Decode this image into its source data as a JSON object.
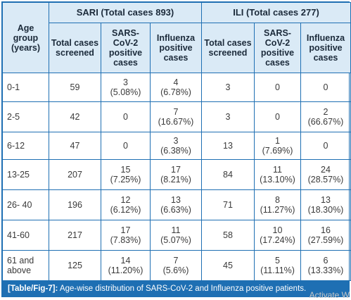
{
  "table": {
    "groups": {
      "sari": "SARI (Total cases 893)",
      "ili": "ILI (Total cases 277)"
    },
    "headers": {
      "age": "Age group (years)",
      "total": "Total cases screened",
      "sars": "SARS-CoV-2 positive cases",
      "flu": "Influenza positive cases"
    },
    "rows": [
      {
        "age": "0-1",
        "sari_total": "59",
        "sari_sars": [
          "3",
          "(5.08%)"
        ],
        "sari_flu": [
          "4",
          "(6.78%)"
        ],
        "ili_total": "3",
        "ili_sars": [
          "0",
          ""
        ],
        "ili_flu": [
          "0",
          ""
        ]
      },
      {
        "age": "2-5",
        "sari_total": "42",
        "sari_sars": [
          "0",
          ""
        ],
        "sari_flu": [
          "7",
          "(16.67%)"
        ],
        "ili_total": "3",
        "ili_sars": [
          "0",
          ""
        ],
        "ili_flu": [
          "2",
          "(66.67%)"
        ]
      },
      {
        "age": "6-12",
        "sari_total": "47",
        "sari_sars": [
          "0",
          ""
        ],
        "sari_flu": [
          "3",
          "(6.38%)"
        ],
        "ili_total": "13",
        "ili_sars": [
          "1",
          "(7.69%)"
        ],
        "ili_flu": [
          "0",
          ""
        ]
      },
      {
        "age": "13-25",
        "sari_total": "207",
        "sari_sars": [
          "15",
          "(7.25%)"
        ],
        "sari_flu": [
          "17",
          "(8.21%)"
        ],
        "ili_total": "84",
        "ili_sars": [
          "11",
          "(13.10%)"
        ],
        "ili_flu": [
          "24",
          "(28.57%)"
        ]
      },
      {
        "age": "26- 40",
        "sari_total": "196",
        "sari_sars": [
          "12",
          "(6.12%)"
        ],
        "sari_flu": [
          "13",
          "(6.63%)"
        ],
        "ili_total": "71",
        "ili_sars": [
          "8",
          "(11.27%)"
        ],
        "ili_flu": [
          "13",
          "(18.30%)"
        ]
      },
      {
        "age": "41-60",
        "sari_total": "217",
        "sari_sars": [
          "17",
          "(7.83%)"
        ],
        "sari_flu": [
          "11",
          "(5.07%)"
        ],
        "ili_total": "58",
        "ili_sars": [
          "10",
          "(17.24%)"
        ],
        "ili_flu": [
          "16",
          "(27.59%)"
        ]
      },
      {
        "age": "61 and above",
        "sari_total": "125",
        "sari_sars": [
          "14",
          "(11.20%)"
        ],
        "sari_flu": [
          "7",
          "(5.6%)"
        ],
        "ili_total": "45",
        "ili_sars": [
          "5",
          "(11.11%)"
        ],
        "ili_flu": [
          "6",
          "(13.33%)"
        ]
      }
    ]
  },
  "caption": {
    "label": "[Table/Fig-7]:",
    "text": " Age-wise distribution of SARS-CoV-2 and Influenza positive patients."
  },
  "watermark": "Activate W",
  "colors": {
    "border": "#1e6fb3",
    "header_bg": "#daeaf6",
    "caption_bg": "#1e6fb3"
  }
}
